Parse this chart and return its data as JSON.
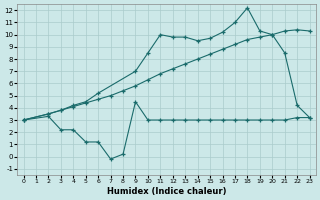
{
  "bg_color": "#cce8e8",
  "grid_color": "#aacccc",
  "line_color": "#1a6b6b",
  "xlabel": "Humidex (Indice chaleur)",
  "xlim": [
    -0.5,
    23.5
  ],
  "ylim": [
    -1.5,
    12.5
  ],
  "xticks": [
    0,
    1,
    2,
    3,
    4,
    5,
    6,
    7,
    8,
    9,
    10,
    11,
    12,
    13,
    14,
    15,
    16,
    17,
    18,
    19,
    20,
    21,
    22,
    23
  ],
  "yticks": [
    -1,
    0,
    1,
    2,
    3,
    4,
    5,
    6,
    7,
    8,
    9,
    10,
    11,
    12
  ],
  "line1_x": [
    0,
    2,
    3,
    4,
    5,
    6,
    7,
    8,
    9,
    10,
    11,
    12,
    13,
    14,
    15,
    16,
    17,
    18,
    19,
    20,
    21,
    22,
    23
  ],
  "line1_y": [
    3.0,
    3.3,
    2.2,
    2.2,
    1.2,
    1.2,
    -0.2,
    0.2,
    4.5,
    3.0,
    3.0,
    3.0,
    3.0,
    3.0,
    3.0,
    3.0,
    3.0,
    3.0,
    3.0,
    3.0,
    3.0,
    3.2,
    3.2
  ],
  "line2_x": [
    0,
    2,
    3,
    4,
    5,
    6,
    7,
    8,
    9,
    10,
    11,
    12,
    13,
    14,
    15,
    16,
    17,
    18,
    19,
    20,
    21,
    22,
    23
  ],
  "line2_y": [
    3.0,
    3.5,
    3.8,
    4.1,
    4.4,
    4.7,
    5.0,
    5.4,
    5.8,
    6.3,
    6.8,
    7.2,
    7.6,
    8.0,
    8.4,
    8.8,
    9.2,
    9.6,
    9.8,
    10.0,
    10.3,
    10.4,
    10.3
  ],
  "line3_x": [
    0,
    2,
    3,
    4,
    5,
    6,
    9,
    10,
    11,
    12,
    13,
    14,
    15,
    16,
    17,
    18,
    19,
    20,
    21,
    22,
    23
  ],
  "line3_y": [
    3.0,
    3.5,
    3.8,
    4.2,
    4.5,
    5.2,
    7.0,
    8.5,
    10.0,
    9.8,
    9.8,
    9.5,
    9.7,
    10.2,
    11.0,
    12.2,
    10.3,
    10.0,
    8.5,
    4.2,
    3.2
  ]
}
